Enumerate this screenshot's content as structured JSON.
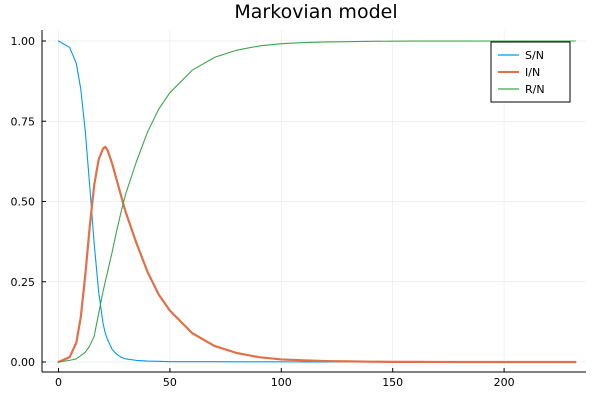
{
  "chart_data": {
    "type": "line",
    "title": "Markovian model",
    "xlabel": "",
    "ylabel": "",
    "xlim": [
      0,
      232
    ],
    "ylim": [
      0,
      1
    ],
    "xticks": [
      0,
      50,
      100,
      150,
      200
    ],
    "yticks": [
      0.0,
      0.25,
      0.5,
      0.75,
      1.0
    ],
    "xtick_labels": [
      "0",
      "50",
      "100",
      "150",
      "200"
    ],
    "ytick_labels": [
      "0.00",
      "0.25",
      "0.50",
      "0.75",
      "1.00"
    ],
    "grid": true,
    "legend_position": "top-right",
    "x": [
      0,
      5,
      8,
      10,
      12,
      14,
      16,
      18,
      20,
      21,
      22,
      24,
      26,
      28,
      30,
      35,
      40,
      45,
      50,
      60,
      70,
      80,
      90,
      100,
      110,
      120,
      130,
      140,
      150,
      160,
      170,
      180,
      200,
      220,
      232
    ],
    "series": [
      {
        "name": "S/N",
        "color": "#009AFA",
        "values": [
          1.0,
          0.98,
          0.93,
          0.85,
          0.72,
          0.55,
          0.37,
          0.22,
          0.12,
          0.09,
          0.07,
          0.04,
          0.025,
          0.015,
          0.01,
          0.005,
          0.003,
          0.002,
          0.001,
          0.001,
          0.001,
          0.0005,
          0.0005,
          0.0005,
          0.0,
          0.0,
          0.0,
          0.0,
          0.0,
          0.0,
          0.0,
          0.0,
          0.0,
          0.0,
          0.0
        ]
      },
      {
        "name": "I/N",
        "color": "#E26F46",
        "values": [
          0.0,
          0.015,
          0.06,
          0.14,
          0.27,
          0.42,
          0.55,
          0.63,
          0.665,
          0.67,
          0.66,
          0.62,
          0.57,
          0.52,
          0.47,
          0.37,
          0.28,
          0.21,
          0.16,
          0.09,
          0.05,
          0.028,
          0.015,
          0.008,
          0.005,
          0.003,
          0.002,
          0.001,
          0.0005,
          0.0003,
          0.0002,
          0.0001,
          0.0,
          0.0,
          0.0
        ]
      },
      {
        "name": "R/N",
        "color": "#3EA44E",
        "values": [
          0.0,
          0.005,
          0.01,
          0.02,
          0.03,
          0.05,
          0.08,
          0.15,
          0.22,
          0.25,
          0.28,
          0.34,
          0.405,
          0.465,
          0.52,
          0.625,
          0.717,
          0.788,
          0.839,
          0.909,
          0.949,
          0.9715,
          0.9845,
          0.9915,
          0.995,
          0.997,
          0.998,
          0.999,
          0.9995,
          0.9997,
          0.9998,
          0.9999,
          1.0,
          1.0,
          1.0
        ]
      }
    ]
  }
}
